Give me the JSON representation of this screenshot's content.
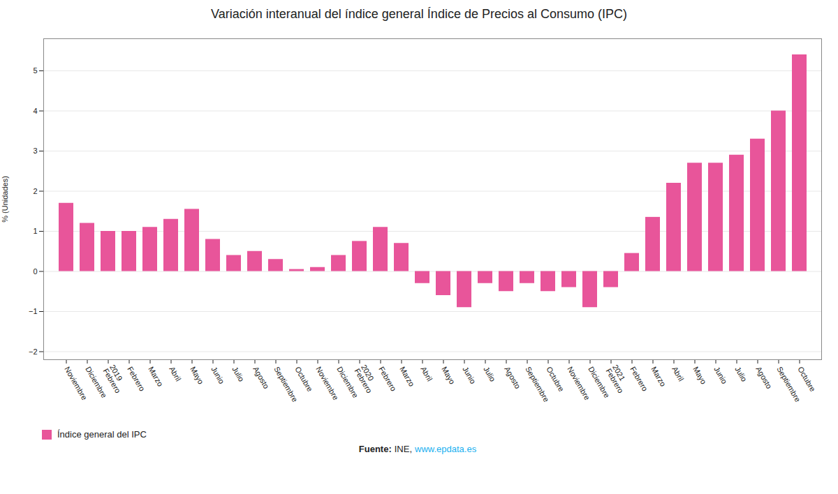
{
  "chart_data": {
    "type": "bar",
    "title": "Variación interanual del índice general Índice de Precios al Consumo (IPC)",
    "ylabel": "% (Unidades)",
    "categories": [
      "Noviembre",
      "Diciembre",
      "2019\nFebrero",
      "Febrero",
      "Marzo",
      "Abril",
      "Mayo",
      "Junio",
      "Julio",
      "Agosto",
      "Septiembre",
      "Octubre",
      "Noviembre",
      "Diciembre",
      "2020\nFebrero",
      "Febrero",
      "Marzo",
      "Abril",
      "Mayo",
      "Junio",
      "Julio",
      "Agosto",
      "Septiembre",
      "Octubre",
      "Noviembre",
      "Diciembre",
      "2021\nFebrero",
      "Febrero",
      "Marzo",
      "Abril",
      "Mayo",
      "Junio",
      "Julio",
      "Agosto",
      "Septiembre",
      "Octubre"
    ],
    "series": [
      {
        "name": "Índice general del IPC",
        "color": "#e8559a",
        "values": [
          1.7,
          1.2,
          1.0,
          1.0,
          1.1,
          1.3,
          1.55,
          0.8,
          0.4,
          0.5,
          0.3,
          0.05,
          0.1,
          0.4,
          0.75,
          1.1,
          0.7,
          -0.3,
          -0.6,
          -0.9,
          -0.3,
          -0.5,
          -0.3,
          -0.5,
          -0.4,
          -0.9,
          -0.4,
          0.45,
          1.35,
          2.2,
          2.7,
          2.7,
          2.9,
          3.3,
          4.0,
          5.4
        ]
      }
    ],
    "ylim": [
      -2.2,
      5.8
    ],
    "yticks": [
      -2,
      -1,
      0,
      1,
      2,
      3,
      4,
      5
    ],
    "grid": true,
    "legend": "lower left",
    "annotations": [
      {
        "text": "Fuente:"
      },
      {
        "text": "INE,"
      },
      {
        "text": "www.epdata.es",
        "color": "#1ab0f0"
      }
    ]
  }
}
